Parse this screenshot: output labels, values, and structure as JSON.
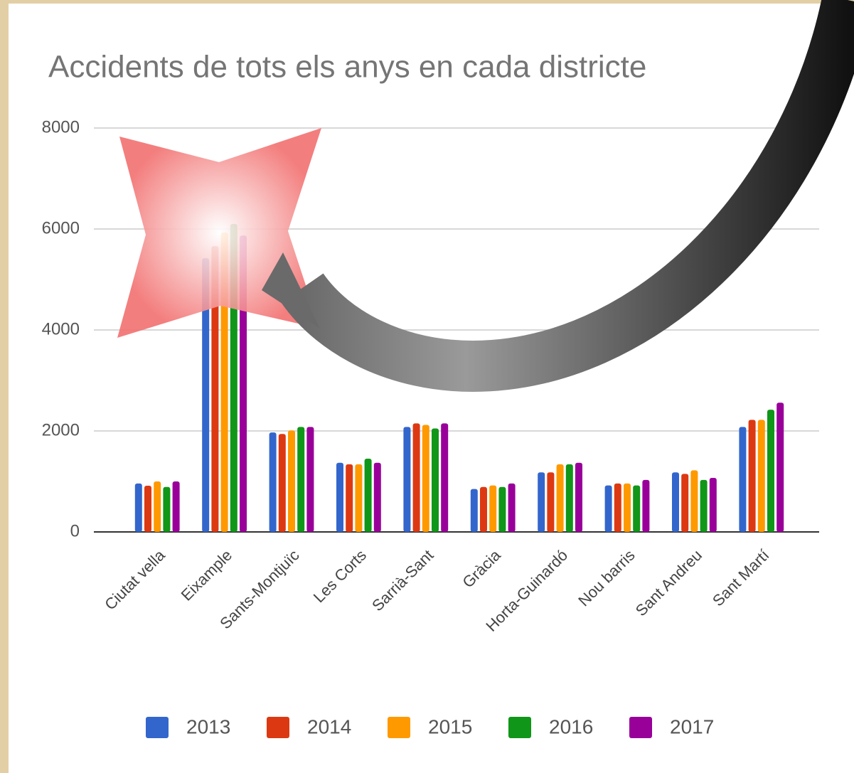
{
  "chart_data": {
    "type": "bar",
    "title": "Accidents de tots els anys en cada districte",
    "categories": [
      "Ciutat vella",
      "Eixample",
      "Sants-Montjuïc",
      "Les Corts",
      "Sarrià-Sant",
      "Gràcia",
      "Horta-Guinardó",
      "Nou barris",
      "Sant Andreu",
      "Sant Martí"
    ],
    "series": [
      {
        "name": "2013",
        "color": "#3366cc",
        "values": [
          960,
          5420,
          1970,
          1370,
          2080,
          850,
          1180,
          920,
          1180,
          2080
        ]
      },
      {
        "name": "2014",
        "color": "#dc3912",
        "values": [
          915,
          5660,
          1940,
          1340,
          2150,
          890,
          1180,
          960,
          1150,
          2220
        ]
      },
      {
        "name": "2015",
        "color": "#ff9900",
        "values": [
          1000,
          5930,
          2010,
          1340,
          2120,
          920,
          1340,
          960,
          1220,
          2220
        ]
      },
      {
        "name": "2016",
        "color": "#109618",
        "values": [
          890,
          6100,
          2080,
          1450,
          2050,
          890,
          1340,
          920,
          1030,
          2420
        ]
      },
      {
        "name": "2017",
        "color": "#990099",
        "values": [
          1000,
          5870,
          2080,
          1370,
          2150,
          960,
          1370,
          1030,
          1070,
          2560
        ]
      }
    ],
    "ylim": [
      0,
      8000
    ],
    "yticks": [
      0,
      2000,
      4000,
      6000,
      8000
    ],
    "grid": true,
    "legend": "bottom"
  }
}
